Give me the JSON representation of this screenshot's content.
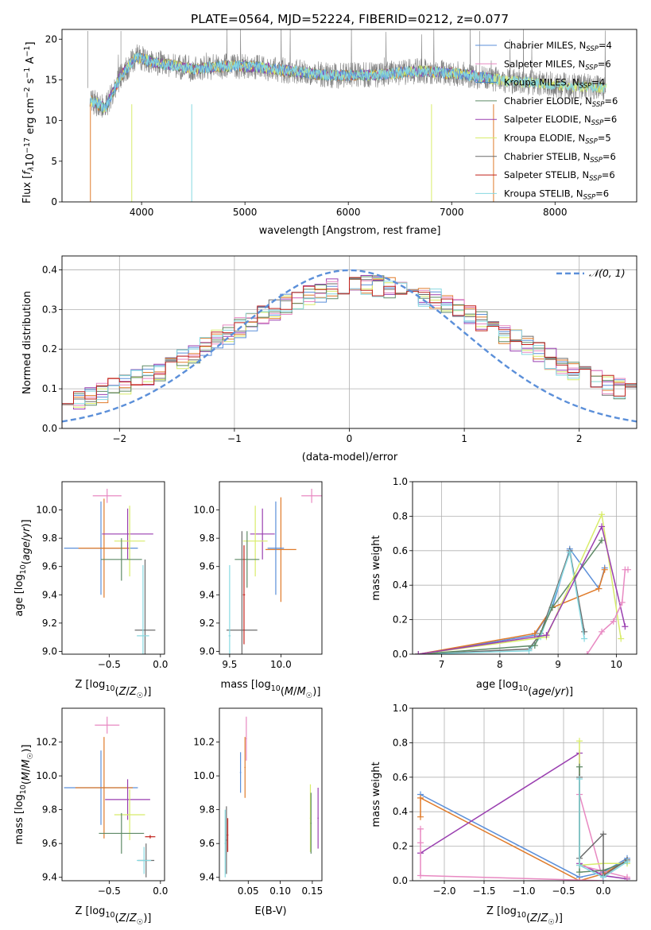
{
  "figure": {
    "title": "PLATE=0564, MJD=52224, FIBERID=0212, z=0.077"
  },
  "colors": {
    "Chabrier MILES": "#5b8fd9",
    "Salpeter MILES": "#e889c2",
    "Kroupa MILES": "#3a7fc0",
    "Chabrier ELODIE": "#5e8a66",
    "Salpeter ELODIE": "#9a3fb0",
    "Kroupa ELODIE": "#d8ec6a",
    "Chabrier STELIB": "#6b6b6b",
    "Salpeter STELIB": "#c0201a",
    "Kroupa STELIB": "#86d8e0",
    "orange": "#e07b2a",
    "normal_curve": "#5b8fd9"
  },
  "chart_data": [
    {
      "id": "spectrum",
      "type": "line",
      "xlabel": "wavelength [Angstrom, rest frame]",
      "ylabel": "Flux [f_λ 10^-17 erg cm^-2 s^-1 A^-1]",
      "xlim": [
        3230,
        8790
      ],
      "ylim": [
        0,
        21.2
      ],
      "xticks": [
        4000,
        5000,
        6000,
        7000,
        8000
      ],
      "yticks": [
        0,
        5,
        10,
        15,
        20
      ],
      "grid": false,
      "legend_position": "upper-right",
      "legend": [
        {
          "label": "Chabrier MILES, N_SSP=4",
          "color_key": "Chabrier MILES"
        },
        {
          "label": "Salpeter MILES, N_SSP=6",
          "color_key": "Salpeter MILES"
        },
        {
          "label": "Kroupa MILES, N_SSP=4",
          "color_key": "Kroupa MILES"
        },
        {
          "label": "Chabrier ELODIE, N_SSP=6",
          "color_key": "Chabrier ELODIE"
        },
        {
          "label": "Salpeter ELODIE, N_SSP=6",
          "color_key": "Salpeter ELODIE"
        },
        {
          "label": "Kroupa ELODIE, N_SSP=5",
          "color_key": "Kroupa ELODIE"
        },
        {
          "label": "Chabrier STELIB, N_SSP=6",
          "color_key": "Chabrier STELIB"
        },
        {
          "label": "Salpeter STELIB, N_SSP=6",
          "color_key": "Salpeter STELIB"
        },
        {
          "label": "Kroupa STELIB, N_SSP=6",
          "color_key": "Kroupa STELIB"
        }
      ],
      "continuum": {
        "x": [
          3500,
          3650,
          3800,
          3950,
          4100,
          4300,
          4500,
          4700,
          4900,
          5100,
          5300,
          5500,
          5700,
          5900,
          6100,
          6300,
          6500,
          6700,
          6900,
          7100,
          7300,
          7500,
          7700,
          7900,
          8100,
          8300,
          8500
        ],
        "y": [
          12.5,
          11.5,
          15.5,
          17.8,
          17.2,
          16.8,
          16.3,
          16.6,
          16.7,
          16.6,
          16.3,
          16.0,
          15.7,
          15.5,
          15.6,
          15.6,
          15.9,
          16.1,
          15.9,
          15.7,
          15.3,
          14.9,
          14.7,
          14.5,
          14.3,
          14.2,
          14.0
        ]
      }
    },
    {
      "id": "residuals",
      "type": "bar",
      "xlabel": "(data-model)/error",
      "ylabel": "Normed distribution",
      "xlim": [
        -2.5,
        2.5
      ],
      "ylim": [
        0,
        0.435
      ],
      "xticks": [
        -2,
        -1,
        0,
        1,
        2
      ],
      "yticks": [
        0.0,
        0.1,
        0.2,
        0.3,
        0.4
      ],
      "grid": true,
      "legend": [
        "𝒩(0, 1)"
      ],
      "legend_position": "upper-right",
      "bin_width": 0.1
    },
    {
      "id": "age_vs_Z",
      "type": "scatter",
      "xlabel": "Z [log10(Z/Z☉)]",
      "ylabel": "age [log10(age/yr)]",
      "xlim": [
        -0.96,
        0.04
      ],
      "ylim": [
        8.98,
        10.2
      ],
      "xticks": [
        -0.5,
        0.0
      ],
      "yticks": [
        9.0,
        9.2,
        9.4,
        9.6,
        9.8,
        10.0
      ],
      "points": [
        {
          "key": "Salpeter MILES",
          "x": -0.52,
          "y": 10.1,
          "xerr": 0.14,
          "yerr": 0.05
        },
        {
          "key": "Chabrier MILES",
          "x": -0.58,
          "y": 9.73,
          "xerr": 0.36,
          "yerr": 0.33
        },
        {
          "key": "orange",
          "x": -0.55,
          "y": 9.73,
          "xerr": 0.25,
          "yerr": 0.35
        },
        {
          "key": "Salpeter ELODIE",
          "x": -0.32,
          "y": 9.83,
          "xerr": 0.25,
          "yerr": 0.18
        },
        {
          "key": "Kroupa ELODIE",
          "x": -0.3,
          "y": 9.78,
          "xerr": 0.15,
          "yerr": 0.25
        },
        {
          "key": "Chabrier ELODIE",
          "x": -0.38,
          "y": 9.65,
          "xerr": 0.2,
          "yerr": 0.15
        },
        {
          "key": "Chabrier STELIB",
          "x": -0.15,
          "y": 9.15,
          "xerr": 0.1,
          "yerr": 0.5
        },
        {
          "key": "Kroupa STELIB",
          "x": -0.17,
          "y": 9.11,
          "xerr": 0.06,
          "yerr": 0.5
        }
      ]
    },
    {
      "id": "age_vs_mass",
      "type": "scatter",
      "xlabel": "mass [log10(M/M☉)]",
      "ylabel": "",
      "xlim": [
        9.4,
        10.4
      ],
      "ylim": [
        8.98,
        10.2
      ],
      "xticks": [
        9.5,
        10.0
      ],
      "yticks": [
        9.0,
        9.2,
        9.4,
        9.6,
        9.8,
        10.0
      ],
      "points": [
        {
          "key": "Salpeter MILES",
          "x": 10.3,
          "y": 10.1,
          "xerr": 0.1,
          "yerr": 0.05
        },
        {
          "key": "orange",
          "x": 10.0,
          "y": 9.72,
          "xerr": 0.15,
          "yerr": 0.37
        },
        {
          "key": "Chabrier MILES",
          "x": 9.95,
          "y": 9.73,
          "xerr": 0.08,
          "yerr": 0.33
        },
        {
          "key": "Salpeter ELODIE",
          "x": 9.82,
          "y": 9.83,
          "xerr": 0.12,
          "yerr": 0.18
        },
        {
          "key": "Kroupa ELODIE",
          "x": 9.75,
          "y": 9.78,
          "xerr": 0.12,
          "yerr": 0.25
        },
        {
          "key": "Chabrier ELODIE",
          "x": 9.67,
          "y": 9.65,
          "xerr": 0.12,
          "yerr": 0.2
        },
        {
          "key": "Chabrier STELIB",
          "x": 9.62,
          "y": 9.15,
          "xerr": 0.15,
          "yerr": 0.7
        },
        {
          "key": "Salpeter STELIB",
          "x": 9.64,
          "y": 9.4,
          "xerr": 0.01,
          "yerr": 0.35
        },
        {
          "key": "Kroupa STELIB",
          "x": 9.5,
          "y": 9.11,
          "xerr": 0.01,
          "yerr": 0.5
        }
      ]
    },
    {
      "id": "mw_vs_age",
      "type": "line",
      "xlabel": "age [log10(age/yr)]",
      "ylabel": "mass weight",
      "xlim": [
        6.5,
        10.35
      ],
      "ylim": [
        0,
        1
      ],
      "xticks": [
        7,
        8,
        9,
        10
      ],
      "yticks": [
        0.0,
        0.2,
        0.4,
        0.6,
        0.8,
        1.0
      ],
      "grid": true,
      "series": [
        {
          "key": "Chabrier MILES",
          "x": [
            6.6,
            8.6,
            8.9,
            9.2,
            9.7,
            9.8
          ],
          "y": [
            0.0,
            0.11,
            0.27,
            0.61,
            0.38,
            0.5
          ]
        },
        {
          "key": "orange",
          "x": [
            6.6,
            8.6,
            8.9,
            9.7,
            9.8
          ],
          "y": [
            0.0,
            0.12,
            0.27,
            0.38,
            0.49
          ]
        },
        {
          "key": "Chabrier STELIB",
          "x": [
            6.6,
            8.5,
            8.7,
            9.2,
            9.45
          ],
          "y": [
            0.0,
            0.03,
            0.12,
            0.6,
            0.13
          ]
        },
        {
          "key": "Kroupa STELIB",
          "x": [
            6.6,
            8.5,
            8.7,
            9.2,
            9.45
          ],
          "y": [
            0.0,
            0.02,
            0.1,
            0.59,
            0.09
          ]
        },
        {
          "key": "Chabrier ELODIE",
          "x": [
            6.6,
            8.6,
            8.9,
            9.75
          ],
          "y": [
            0.0,
            0.05,
            0.27,
            0.66
          ]
        },
        {
          "key": "Kroupa ELODIE",
          "x": [
            6.6,
            8.8,
            9.75,
            10.08
          ],
          "y": [
            0.0,
            0.1,
            0.81,
            0.09
          ]
        },
        {
          "key": "Salpeter ELODIE",
          "x": [
            6.6,
            8.8,
            9.75,
            10.15
          ],
          "y": [
            0.0,
            0.11,
            0.74,
            0.16
          ]
        },
        {
          "key": "Salpeter MILES",
          "x": [
            9.5,
            9.75,
            9.95,
            10.1,
            10.15,
            10.2
          ],
          "y": [
            0.0,
            0.13,
            0.19,
            0.3,
            0.49,
            0.49
          ]
        }
      ]
    },
    {
      "id": "mass_vs_Z",
      "type": "scatter",
      "xlabel": "Z [log10(Z/Z☉)]",
      "ylabel": "mass [log10(M/M☉)]",
      "xlim": [
        -0.96,
        0.04
      ],
      "ylim": [
        9.38,
        10.4
      ],
      "xticks": [
        -0.5,
        0.0
      ],
      "yticks": [
        9.4,
        9.6,
        9.8,
        10.0,
        10.2
      ],
      "points": [
        {
          "key": "Salpeter MILES",
          "x": -0.52,
          "y": 10.3,
          "xerr": 0.12,
          "yerr": 0.05
        },
        {
          "key": "Chabrier MILES",
          "x": -0.58,
          "y": 9.93,
          "xerr": 0.36,
          "yerr": 0.22
        },
        {
          "key": "orange",
          "x": -0.55,
          "y": 9.93,
          "xerr": 0.28,
          "yerr": 0.3
        },
        {
          "key": "Salpeter ELODIE",
          "x": -0.32,
          "y": 9.86,
          "xerr": 0.22,
          "yerr": 0.12
        },
        {
          "key": "Kroupa ELODIE",
          "x": -0.3,
          "y": 9.77,
          "xerr": 0.15,
          "yerr": 0.15
        },
        {
          "key": "Chabrier ELODIE",
          "x": -0.38,
          "y": 9.66,
          "xerr": 0.22,
          "yerr": 0.12
        },
        {
          "key": "Salpeter STELIB",
          "x": -0.1,
          "y": 9.64,
          "xerr": 0.05,
          "yerr": 0.01
        },
        {
          "key": "Chabrier STELIB",
          "x": -0.14,
          "y": 9.5,
          "xerr": 0.08,
          "yerr": 0.1
        },
        {
          "key": "Kroupa STELIB",
          "x": -0.16,
          "y": 9.5,
          "xerr": 0.07,
          "yerr": 0.08
        }
      ]
    },
    {
      "id": "mass_vs_ebv",
      "type": "scatter",
      "xlabel": "E(B-V)",
      "ylabel": "",
      "xlim": [
        0.005,
        0.165
      ],
      "ylim": [
        9.38,
        10.4
      ],
      "xticks": [
        0.05,
        0.1,
        0.15
      ],
      "yticks": [
        9.4,
        9.6,
        9.8,
        10.0,
        10.2
      ],
      "points": [
        {
          "key": "Salpeter MILES",
          "x": 0.047,
          "y": 10.22,
          "xerr": 0.001,
          "yerr": 0.13
        },
        {
          "key": "orange",
          "x": 0.045,
          "y": 10.05,
          "xerr": 0.001,
          "yerr": 0.18
        },
        {
          "key": "Chabrier MILES",
          "x": 0.038,
          "y": 10.02,
          "xerr": 0.001,
          "yerr": 0.12
        },
        {
          "key": "Kroupa ELODIE",
          "x": 0.147,
          "y": 9.75,
          "xerr": 0.001,
          "yerr": 0.2
        },
        {
          "key": "Chabrier ELODIE",
          "x": 0.148,
          "y": 9.72,
          "xerr": 0.001,
          "yerr": 0.18
        },
        {
          "key": "Salpeter ELODIE",
          "x": 0.159,
          "y": 9.75,
          "xerr": 0.001,
          "yerr": 0.18
        },
        {
          "key": "Salpeter STELIB",
          "x": 0.018,
          "y": 9.65,
          "xerr": 0.001,
          "yerr": 0.1
        },
        {
          "key": "Chabrier STELIB",
          "x": 0.016,
          "y": 9.62,
          "xerr": 0.001,
          "yerr": 0.2
        },
        {
          "key": "Kroupa STELIB",
          "x": 0.014,
          "y": 9.6,
          "xerr": 0.001,
          "yerr": 0.2
        }
      ]
    },
    {
      "id": "mw_vs_Z",
      "type": "line",
      "xlabel": "Z [log10(Z/Z☉)]",
      "ylabel": "mass weight",
      "xlim": [
        -2.4,
        0.42
      ],
      "ylim": [
        0,
        1
      ],
      "xticks": [
        -2.0,
        -1.5,
        -1.0,
        -0.5,
        0.0
      ],
      "yticks": [
        0.0,
        0.2,
        0.4,
        0.6,
        0.8,
        1.0
      ],
      "grid": true,
      "series": [
        {
          "key": "Chabrier MILES",
          "x": [
            -2.3,
            -0.3,
            0.0,
            0.3
          ],
          "y": [
            0.5,
            0.02,
            0.05,
            0.13
          ]
        },
        {
          "key": "orange",
          "x": [
            -2.3,
            -2.3,
            -0.3,
            0.0,
            0.3
          ],
          "y": [
            0.37,
            0.48,
            0.0,
            0.04,
            0.12
          ]
        },
        {
          "key": "Salpeter ELODIE",
          "x": [
            -2.3,
            -0.3,
            -0.3,
            0.0,
            0.3
          ],
          "y": [
            0.16,
            0.74,
            0.1,
            0.03,
            0.01
          ]
        },
        {
          "key": "Salpeter MILES",
          "x": [
            -2.3,
            -2.3,
            -2.3,
            0.0,
            -0.3,
            -0.3,
            0.3
          ],
          "y": [
            0.3,
            0.22,
            0.03,
            0.0,
            0.5,
            0.09,
            0.02
          ]
        },
        {
          "key": "Kroupa ELODIE",
          "x": [
            -0.3,
            -0.3,
            0.0,
            0.3
          ],
          "y": [
            0.81,
            0.09,
            0.1,
            0.1
          ]
        },
        {
          "key": "Chabrier ELODIE",
          "x": [
            -0.3,
            -0.3,
            0.0,
            0.3
          ],
          "y": [
            0.66,
            0.05,
            0.06,
            0.11
          ]
        },
        {
          "key": "Chabrier STELIB",
          "x": [
            -0.3,
            -0.3,
            0.0,
            0.0,
            0.3
          ],
          "y": [
            0.6,
            0.13,
            0.27,
            0.03,
            0.12
          ]
        },
        {
          "key": "Kroupa STELIB",
          "x": [
            -0.3,
            -0.3,
            0.0,
            0.3
          ],
          "y": [
            0.59,
            0.09,
            0.02,
            0.11
          ]
        }
      ]
    }
  ]
}
